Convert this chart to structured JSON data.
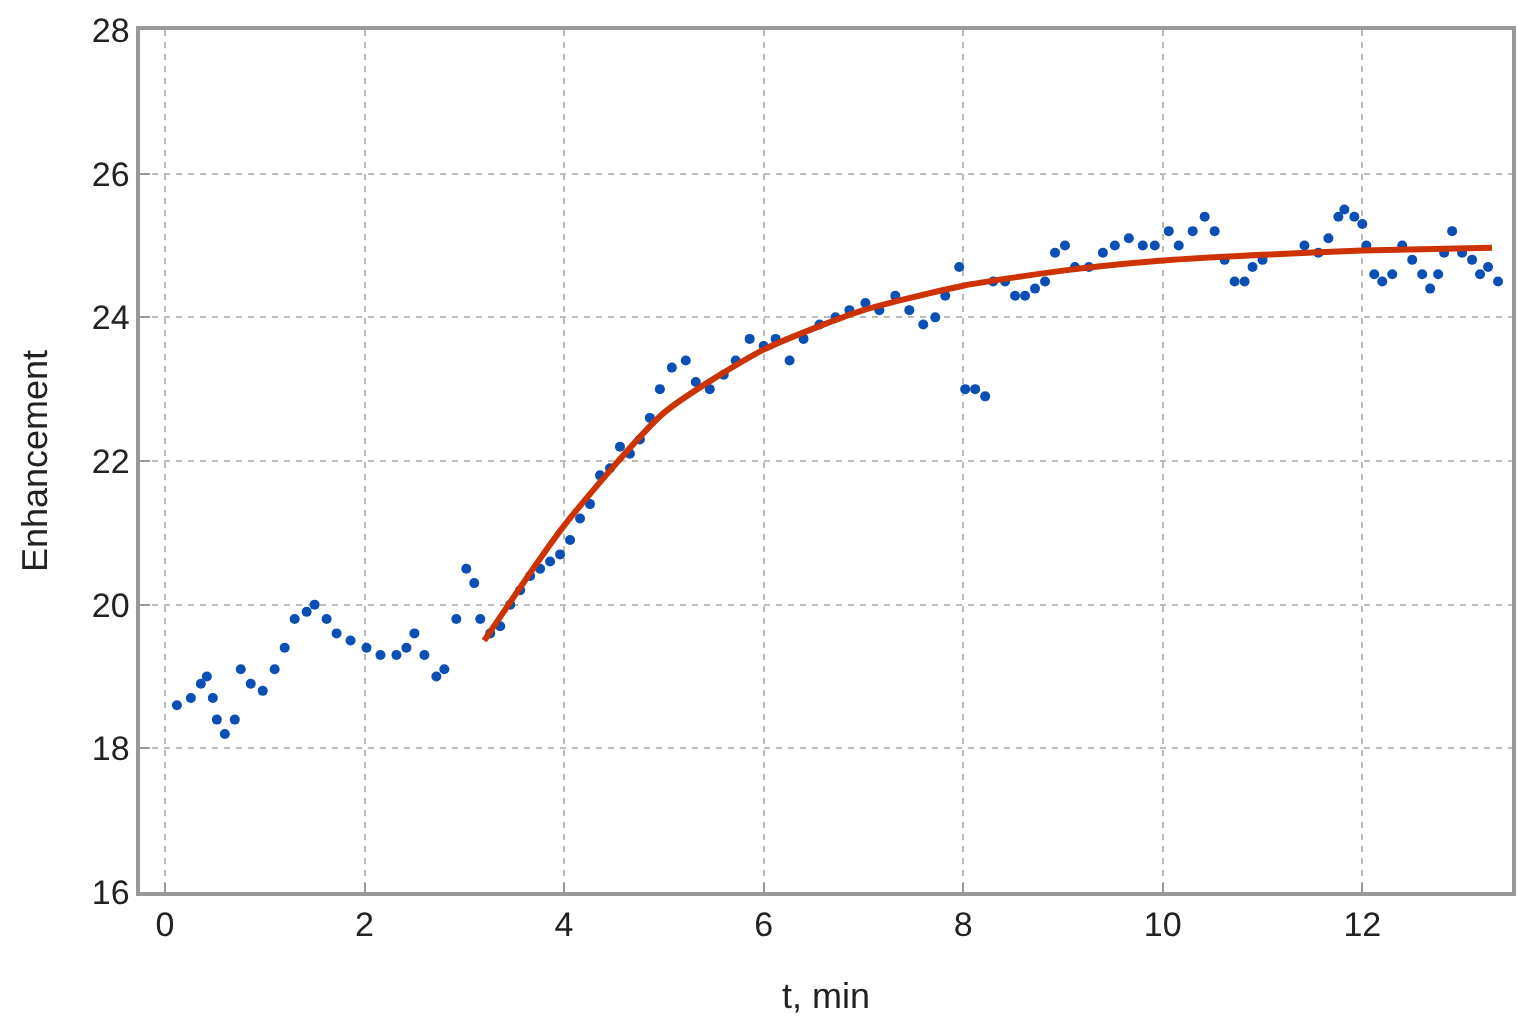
{
  "chart_data": {
    "type": "scatter",
    "xlabel": "t, min",
    "ylabel": "Enhancement",
    "xlim": [
      -0.25,
      13.5
    ],
    "ylim": [
      16,
      28
    ],
    "xticks": [
      0,
      2,
      4,
      6,
      8,
      10,
      12
    ],
    "yticks": [
      16,
      18,
      20,
      22,
      24,
      26,
      28
    ],
    "grid": true,
    "marker": "circle",
    "series": [
      {
        "color": "#0a4fb5",
        "x": [
          0.12,
          0.26,
          0.36,
          0.42,
          0.48,
          0.52,
          0.6,
          0.7,
          0.76,
          0.86,
          0.98,
          1.1,
          1.2,
          1.3,
          1.42,
          1.5,
          1.62,
          1.72,
          1.86,
          2.02,
          2.16,
          2.32,
          2.42,
          2.5,
          2.6,
          2.72,
          2.8,
          2.92,
          3.02,
          3.1,
          3.16,
          3.26,
          3.36,
          3.46,
          3.56,
          3.66,
          3.76,
          3.86,
          3.96,
          4.06,
          4.16,
          4.26,
          4.36,
          4.46,
          4.56,
          4.66,
          4.76,
          4.86,
          4.96,
          5.08,
          5.22,
          5.32,
          5.46,
          5.6,
          5.72,
          5.86,
          6.0,
          6.12,
          6.26,
          6.4,
          6.56,
          6.72,
          6.86,
          7.02,
          7.16,
          7.32,
          7.46,
          7.6,
          7.72,
          7.82,
          7.96,
          8.02,
          8.12,
          8.22,
          8.3,
          8.42,
          8.52,
          8.62,
          8.72,
          8.82,
          8.92,
          9.02,
          9.12,
          9.26,
          9.4,
          9.52,
          9.66,
          9.8,
          9.92,
          10.06,
          10.16,
          10.3,
          10.42,
          10.52,
          10.62,
          10.72,
          10.82,
          10.9,
          11.0,
          11.42,
          11.56,
          11.66,
          11.76,
          11.82,
          11.92,
          12.0,
          12.04,
          12.12,
          12.2,
          12.3,
          12.4,
          12.5,
          12.6,
          12.68,
          12.76,
          12.82,
          12.9,
          13.0,
          13.1,
          13.18,
          13.26,
          13.36
        ],
        "values": [
          18.6,
          18.7,
          18.9,
          19.0,
          18.7,
          18.4,
          18.2,
          18.4,
          19.1,
          18.9,
          18.8,
          19.1,
          19.4,
          19.8,
          19.9,
          20.0,
          19.8,
          19.6,
          19.5,
          19.4,
          19.3,
          19.3,
          19.4,
          19.6,
          19.3,
          19.0,
          19.1,
          19.8,
          20.5,
          20.3,
          19.8,
          19.6,
          19.7,
          20.0,
          20.2,
          20.4,
          20.5,
          20.6,
          20.7,
          20.9,
          21.2,
          21.4,
          21.8,
          21.9,
          22.2,
          22.1,
          22.3,
          22.6,
          23.0,
          23.3,
          23.4,
          23.1,
          23.0,
          23.2,
          23.4,
          23.7,
          23.6,
          23.7,
          23.4,
          23.7,
          23.9,
          24.0,
          24.1,
          24.2,
          24.1,
          24.3,
          24.1,
          23.9,
          24.0,
          24.3,
          24.7,
          23.0,
          23.0,
          22.9,
          24.5,
          24.5,
          24.3,
          24.3,
          24.4,
          24.5,
          24.9,
          25.0,
          24.7,
          24.7,
          24.9,
          25.0,
          25.1,
          25.0,
          25.0,
          25.2,
          25.0,
          25.2,
          25.4,
          25.2,
          24.8,
          24.5,
          24.5,
          24.7,
          24.8,
          25.0,
          24.9,
          25.1,
          25.4,
          25.5,
          25.4,
          25.3,
          25.0,
          24.6,
          24.5,
          24.6,
          25.0,
          24.8,
          24.6,
          24.4,
          24.6,
          24.9,
          25.2,
          24.9,
          24.8,
          24.6,
          24.7,
          24.5
        ]
      },
      {
        "type": "line",
        "color": "#cc3300",
        "marker": "none",
        "x": [
          3.2,
          4,
          5,
          6,
          7,
          8,
          9,
          10,
          11,
          12,
          13.3
        ],
        "values": [
          19.5,
          21.1,
          22.67,
          23.55,
          24.1,
          24.44,
          24.65,
          24.79,
          24.87,
          24.93,
          24.97
        ]
      }
    ]
  }
}
